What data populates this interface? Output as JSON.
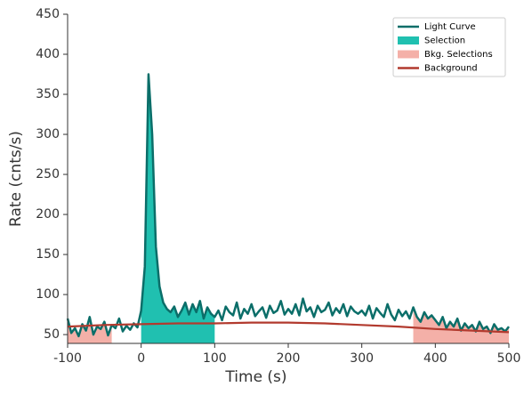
{
  "chart_data": {
    "type": "line",
    "xlabel": "Time (s)",
    "ylabel": "Rate (cnts/s)",
    "xlim": [
      -100,
      500
    ],
    "xticks": [
      -100,
      0,
      100,
      200,
      300,
      400,
      500
    ],
    "ylim": [
      39,
      450
    ],
    "yticks": [
      50,
      100,
      150,
      200,
      250,
      300,
      350,
      400,
      450
    ],
    "legend": "upper right",
    "series": [
      {
        "name": "Light Curve",
        "color": "#0b6e69",
        "x": [
          -100,
          -95,
          -90,
          -85,
          -80,
          -75,
          -70,
          -65,
          -60,
          -55,
          -50,
          -45,
          -40,
          -35,
          -30,
          -25,
          -20,
          -15,
          -10,
          -5,
          0,
          5,
          10,
          15,
          20,
          25,
          30,
          35,
          40,
          45,
          50,
          55,
          60,
          65,
          70,
          75,
          80,
          85,
          90,
          95,
          100,
          105,
          110,
          115,
          120,
          125,
          130,
          135,
          140,
          145,
          150,
          155,
          160,
          165,
          170,
          175,
          180,
          185,
          190,
          195,
          200,
          205,
          210,
          215,
          220,
          225,
          230,
          235,
          240,
          245,
          250,
          255,
          260,
          265,
          270,
          275,
          280,
          285,
          290,
          295,
          300,
          305,
          310,
          315,
          320,
          325,
          330,
          335,
          340,
          345,
          350,
          355,
          360,
          365,
          370,
          375,
          380,
          385,
          390,
          395,
          400,
          405,
          410,
          415,
          420,
          425,
          430,
          435,
          440,
          445,
          450,
          455,
          460,
          465,
          470,
          475,
          480,
          485,
          490,
          495,
          500
        ],
        "values": [
          70,
          52,
          58,
          48,
          63,
          55,
          72,
          50,
          60,
          57,
          66,
          49,
          62,
          58,
          70,
          54,
          61,
          56,
          64,
          59,
          80,
          135,
          375,
          300,
          160,
          110,
          90,
          82,
          78,
          85,
          72,
          80,
          90,
          75,
          88,
          78,
          92,
          70,
          84,
          76,
          72,
          80,
          68,
          85,
          78,
          74,
          90,
          70,
          82,
          76,
          88,
          73,
          79,
          84,
          71,
          86,
          77,
          80,
          92,
          75,
          82,
          76,
          88,
          74,
          95,
          79,
          84,
          72,
          86,
          78,
          81,
          90,
          74,
          83,
          77,
          88,
          73,
          85,
          79,
          76,
          80,
          74,
          86,
          70,
          83,
          77,
          72,
          88,
          75,
          68,
          81,
          73,
          79,
          70,
          84,
          72,
          66,
          78,
          70,
          74,
          68,
          62,
          72,
          58,
          66,
          60,
          70,
          55,
          64,
          58,
          62,
          54,
          66,
          57,
          60,
          52,
          63,
          56,
          58,
          54,
          60
        ]
      },
      {
        "name": "Background",
        "color": "#b23a2e",
        "x": [
          -100,
          -50,
          0,
          50,
          100,
          150,
          200,
          250,
          300,
          350,
          400,
          450,
          500
        ],
        "values": [
          60,
          62,
          63,
          64,
          64,
          65,
          65,
          64,
          62,
          60,
          57,
          55,
          53
        ]
      }
    ],
    "selections": [
      {
        "name": "Selection",
        "color": "#20c0b0",
        "ranges": [
          [
            0,
            100
          ]
        ]
      },
      {
        "name": "Bkg. Selections",
        "color": "#f4b0a8",
        "ranges": [
          [
            -100,
            -40
          ],
          [
            370,
            500
          ]
        ]
      }
    ]
  }
}
